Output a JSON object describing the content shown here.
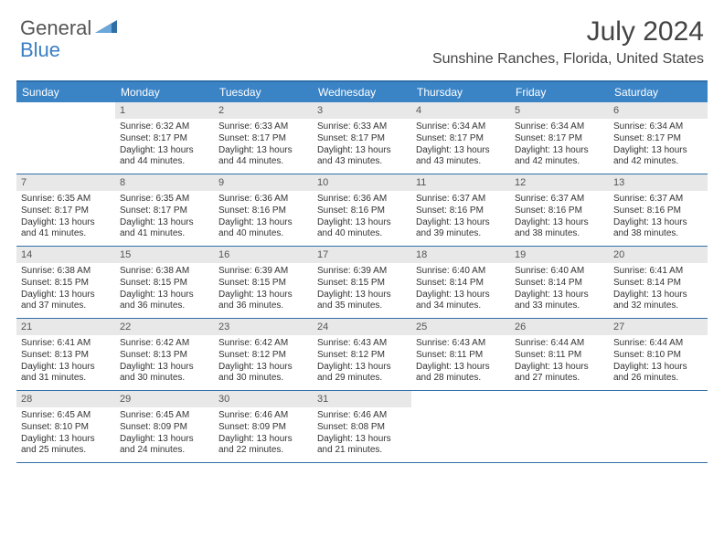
{
  "brand": {
    "part1": "General",
    "part2": "Blue"
  },
  "title": "July 2024",
  "location": "Sunshine Ranches, Florida, United States",
  "colors": {
    "header_bg": "#3a84c6",
    "border": "#2f6fa8",
    "daynum_bg": "#e8e8e8"
  },
  "dayNames": [
    "Sunday",
    "Monday",
    "Tuesday",
    "Wednesday",
    "Thursday",
    "Friday",
    "Saturday"
  ],
  "weeks": [
    [
      {
        "n": "",
        "sr": "",
        "ss": "",
        "dl": ""
      },
      {
        "n": "1",
        "sr": "Sunrise: 6:32 AM",
        "ss": "Sunset: 8:17 PM",
        "dl": "Daylight: 13 hours and 44 minutes."
      },
      {
        "n": "2",
        "sr": "Sunrise: 6:33 AM",
        "ss": "Sunset: 8:17 PM",
        "dl": "Daylight: 13 hours and 44 minutes."
      },
      {
        "n": "3",
        "sr": "Sunrise: 6:33 AM",
        "ss": "Sunset: 8:17 PM",
        "dl": "Daylight: 13 hours and 43 minutes."
      },
      {
        "n": "4",
        "sr": "Sunrise: 6:34 AM",
        "ss": "Sunset: 8:17 PM",
        "dl": "Daylight: 13 hours and 43 minutes."
      },
      {
        "n": "5",
        "sr": "Sunrise: 6:34 AM",
        "ss": "Sunset: 8:17 PM",
        "dl": "Daylight: 13 hours and 42 minutes."
      },
      {
        "n": "6",
        "sr": "Sunrise: 6:34 AM",
        "ss": "Sunset: 8:17 PM",
        "dl": "Daylight: 13 hours and 42 minutes."
      }
    ],
    [
      {
        "n": "7",
        "sr": "Sunrise: 6:35 AM",
        "ss": "Sunset: 8:17 PM",
        "dl": "Daylight: 13 hours and 41 minutes."
      },
      {
        "n": "8",
        "sr": "Sunrise: 6:35 AM",
        "ss": "Sunset: 8:17 PM",
        "dl": "Daylight: 13 hours and 41 minutes."
      },
      {
        "n": "9",
        "sr": "Sunrise: 6:36 AM",
        "ss": "Sunset: 8:16 PM",
        "dl": "Daylight: 13 hours and 40 minutes."
      },
      {
        "n": "10",
        "sr": "Sunrise: 6:36 AM",
        "ss": "Sunset: 8:16 PM",
        "dl": "Daylight: 13 hours and 40 minutes."
      },
      {
        "n": "11",
        "sr": "Sunrise: 6:37 AM",
        "ss": "Sunset: 8:16 PM",
        "dl": "Daylight: 13 hours and 39 minutes."
      },
      {
        "n": "12",
        "sr": "Sunrise: 6:37 AM",
        "ss": "Sunset: 8:16 PM",
        "dl": "Daylight: 13 hours and 38 minutes."
      },
      {
        "n": "13",
        "sr": "Sunrise: 6:37 AM",
        "ss": "Sunset: 8:16 PM",
        "dl": "Daylight: 13 hours and 38 minutes."
      }
    ],
    [
      {
        "n": "14",
        "sr": "Sunrise: 6:38 AM",
        "ss": "Sunset: 8:15 PM",
        "dl": "Daylight: 13 hours and 37 minutes."
      },
      {
        "n": "15",
        "sr": "Sunrise: 6:38 AM",
        "ss": "Sunset: 8:15 PM",
        "dl": "Daylight: 13 hours and 36 minutes."
      },
      {
        "n": "16",
        "sr": "Sunrise: 6:39 AM",
        "ss": "Sunset: 8:15 PM",
        "dl": "Daylight: 13 hours and 36 minutes."
      },
      {
        "n": "17",
        "sr": "Sunrise: 6:39 AM",
        "ss": "Sunset: 8:15 PM",
        "dl": "Daylight: 13 hours and 35 minutes."
      },
      {
        "n": "18",
        "sr": "Sunrise: 6:40 AM",
        "ss": "Sunset: 8:14 PM",
        "dl": "Daylight: 13 hours and 34 minutes."
      },
      {
        "n": "19",
        "sr": "Sunrise: 6:40 AM",
        "ss": "Sunset: 8:14 PM",
        "dl": "Daylight: 13 hours and 33 minutes."
      },
      {
        "n": "20",
        "sr": "Sunrise: 6:41 AM",
        "ss": "Sunset: 8:14 PM",
        "dl": "Daylight: 13 hours and 32 minutes."
      }
    ],
    [
      {
        "n": "21",
        "sr": "Sunrise: 6:41 AM",
        "ss": "Sunset: 8:13 PM",
        "dl": "Daylight: 13 hours and 31 minutes."
      },
      {
        "n": "22",
        "sr": "Sunrise: 6:42 AM",
        "ss": "Sunset: 8:13 PM",
        "dl": "Daylight: 13 hours and 30 minutes."
      },
      {
        "n": "23",
        "sr": "Sunrise: 6:42 AM",
        "ss": "Sunset: 8:12 PM",
        "dl": "Daylight: 13 hours and 30 minutes."
      },
      {
        "n": "24",
        "sr": "Sunrise: 6:43 AM",
        "ss": "Sunset: 8:12 PM",
        "dl": "Daylight: 13 hours and 29 minutes."
      },
      {
        "n": "25",
        "sr": "Sunrise: 6:43 AM",
        "ss": "Sunset: 8:11 PM",
        "dl": "Daylight: 13 hours and 28 minutes."
      },
      {
        "n": "26",
        "sr": "Sunrise: 6:44 AM",
        "ss": "Sunset: 8:11 PM",
        "dl": "Daylight: 13 hours and 27 minutes."
      },
      {
        "n": "27",
        "sr": "Sunrise: 6:44 AM",
        "ss": "Sunset: 8:10 PM",
        "dl": "Daylight: 13 hours and 26 minutes."
      }
    ],
    [
      {
        "n": "28",
        "sr": "Sunrise: 6:45 AM",
        "ss": "Sunset: 8:10 PM",
        "dl": "Daylight: 13 hours and 25 minutes."
      },
      {
        "n": "29",
        "sr": "Sunrise: 6:45 AM",
        "ss": "Sunset: 8:09 PM",
        "dl": "Daylight: 13 hours and 24 minutes."
      },
      {
        "n": "30",
        "sr": "Sunrise: 6:46 AM",
        "ss": "Sunset: 8:09 PM",
        "dl": "Daylight: 13 hours and 22 minutes."
      },
      {
        "n": "31",
        "sr": "Sunrise: 6:46 AM",
        "ss": "Sunset: 8:08 PM",
        "dl": "Daylight: 13 hours and 21 minutes."
      },
      {
        "n": "",
        "sr": "",
        "ss": "",
        "dl": ""
      },
      {
        "n": "",
        "sr": "",
        "ss": "",
        "dl": ""
      },
      {
        "n": "",
        "sr": "",
        "ss": "",
        "dl": ""
      }
    ]
  ]
}
